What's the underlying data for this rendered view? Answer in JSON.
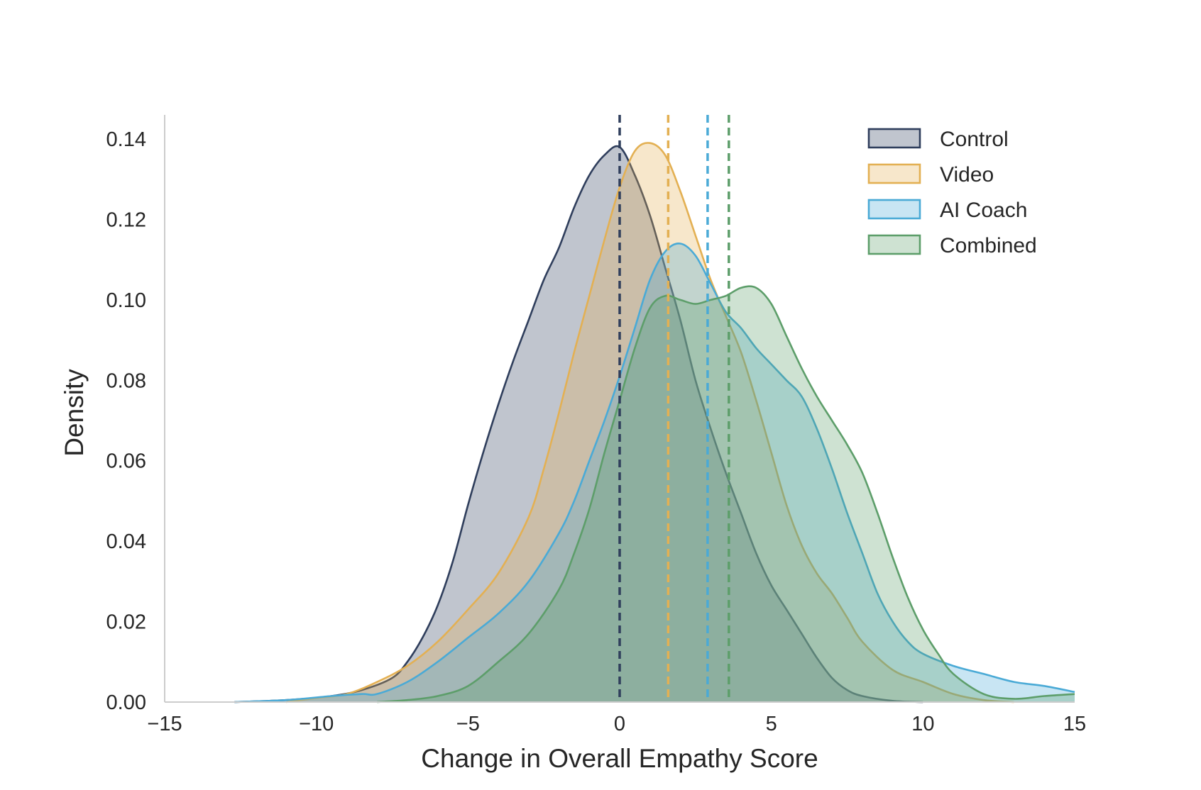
{
  "chart_data": {
    "type": "area",
    "title": "",
    "xlabel": "Change in Overall Empathy Score",
    "ylabel": "Density",
    "xlim": [
      -15,
      15
    ],
    "ylim": [
      0,
      0.146
    ],
    "xticks": [
      -15,
      -10,
      -5,
      0,
      5,
      10,
      15
    ],
    "xtick_labels": [
      "−15",
      "−10",
      "−5",
      "0",
      "5",
      "10",
      "15"
    ],
    "yticks": [
      0,
      0.02,
      0.04,
      0.06,
      0.08,
      0.1,
      0.12,
      0.14
    ],
    "ytick_labels": [
      "0.00",
      "0.02",
      "0.04",
      "0.06",
      "0.08",
      "0.10",
      "0.12",
      "0.14"
    ],
    "grid": false,
    "legend_position": "top-right",
    "series": [
      {
        "name": "Control",
        "color": "#2f3e5c",
        "mean_line": 0,
        "points": [
          [
            -12.7,
            0
          ],
          [
            -11,
            0.0005
          ],
          [
            -9.5,
            0.0015
          ],
          [
            -8.5,
            0.003
          ],
          [
            -7.5,
            0.006
          ],
          [
            -7,
            0.01
          ],
          [
            -6.5,
            0.016
          ],
          [
            -6,
            0.024
          ],
          [
            -5.5,
            0.035
          ],
          [
            -5,
            0.049
          ],
          [
            -4.5,
            0.062
          ],
          [
            -4,
            0.074
          ],
          [
            -3.5,
            0.085
          ],
          [
            -3,
            0.095
          ],
          [
            -2.5,
            0.105
          ],
          [
            -2,
            0.113
          ],
          [
            -1.5,
            0.123
          ],
          [
            -1,
            0.131
          ],
          [
            -0.5,
            0.136
          ],
          [
            0,
            0.138
          ],
          [
            0.5,
            0.131
          ],
          [
            1,
            0.121
          ],
          [
            1.5,
            0.108
          ],
          [
            2,
            0.095
          ],
          [
            2.5,
            0.08
          ],
          [
            3,
            0.068
          ],
          [
            3.5,
            0.057
          ],
          [
            4,
            0.047
          ],
          [
            4.5,
            0.037
          ],
          [
            5,
            0.029
          ],
          [
            5.5,
            0.023
          ],
          [
            6,
            0.017
          ],
          [
            6.5,
            0.011
          ],
          [
            7,
            0.006
          ],
          [
            7.5,
            0.003
          ],
          [
            8,
            0.0015
          ],
          [
            9,
            0.0003
          ],
          [
            10,
            0
          ]
        ]
      },
      {
        "name": "Video",
        "color": "#e3b053",
        "mean_line": 1.6,
        "points": [
          [
            -11,
            0
          ],
          [
            -10,
            0.001
          ],
          [
            -9,
            0.002
          ],
          [
            -8,
            0.005
          ],
          [
            -7,
            0.009
          ],
          [
            -6,
            0.015
          ],
          [
            -5,
            0.023
          ],
          [
            -4,
            0.032
          ],
          [
            -3,
            0.046
          ],
          [
            -2.5,
            0.058
          ],
          [
            -2,
            0.072
          ],
          [
            -1.5,
            0.087
          ],
          [
            -1,
            0.101
          ],
          [
            -0.5,
            0.115
          ],
          [
            0,
            0.128
          ],
          [
            0.5,
            0.137
          ],
          [
            1,
            0.139
          ],
          [
            1.5,
            0.136
          ],
          [
            2,
            0.127
          ],
          [
            2.5,
            0.116
          ],
          [
            3,
            0.105
          ],
          [
            3.5,
            0.096
          ],
          [
            4,
            0.087
          ],
          [
            4.5,
            0.075
          ],
          [
            5,
            0.062
          ],
          [
            5.5,
            0.049
          ],
          [
            6,
            0.039
          ],
          [
            6.5,
            0.032
          ],
          [
            7,
            0.027
          ],
          [
            7.5,
            0.021
          ],
          [
            8,
            0.015
          ],
          [
            9,
            0.008
          ],
          [
            10,
            0.005
          ],
          [
            11,
            0.002
          ],
          [
            12,
            0.0005
          ],
          [
            13,
            0
          ]
        ]
      },
      {
        "name": "AI Coach",
        "color": "#4aaad6",
        "mean_line": 2.9,
        "points": [
          [
            -12.7,
            0
          ],
          [
            -11,
            0.0005
          ],
          [
            -9.5,
            0.0015
          ],
          [
            -8.5,
            0.002
          ],
          [
            -8,
            0.002
          ],
          [
            -7,
            0.005
          ],
          [
            -6,
            0.01
          ],
          [
            -5,
            0.016
          ],
          [
            -4,
            0.022
          ],
          [
            -3,
            0.03
          ],
          [
            -2,
            0.042
          ],
          [
            -1.5,
            0.05
          ],
          [
            -1,
            0.06
          ],
          [
            -0.5,
            0.07
          ],
          [
            0,
            0.081
          ],
          [
            0.5,
            0.093
          ],
          [
            1,
            0.105
          ],
          [
            1.5,
            0.112
          ],
          [
            2,
            0.114
          ],
          [
            2.5,
            0.111
          ],
          [
            3,
            0.104
          ],
          [
            3.5,
            0.097
          ],
          [
            4,
            0.093
          ],
          [
            4.5,
            0.088
          ],
          [
            5,
            0.084
          ],
          [
            5.5,
            0.08
          ],
          [
            6,
            0.076
          ],
          [
            6.5,
            0.068
          ],
          [
            7,
            0.058
          ],
          [
            7.5,
            0.047
          ],
          [
            8,
            0.037
          ],
          [
            8.5,
            0.027
          ],
          [
            9,
            0.02
          ],
          [
            9.5,
            0.015
          ],
          [
            10,
            0.012
          ],
          [
            11,
            0.009
          ],
          [
            12,
            0.007
          ],
          [
            13,
            0.005
          ],
          [
            14,
            0.004
          ],
          [
            15,
            0.0025
          ]
        ]
      },
      {
        "name": "Combined",
        "color": "#5d9e6a",
        "mean_line": 3.6,
        "points": [
          [
            -8,
            0
          ],
          [
            -7,
            0.0005
          ],
          [
            -6,
            0.0015
          ],
          [
            -5,
            0.004
          ],
          [
            -4,
            0.01
          ],
          [
            -3,
            0.017
          ],
          [
            -2,
            0.028
          ],
          [
            -1.5,
            0.037
          ],
          [
            -1,
            0.048
          ],
          [
            -0.5,
            0.062
          ],
          [
            0,
            0.075
          ],
          [
            0.5,
            0.088
          ],
          [
            1,
            0.098
          ],
          [
            1.5,
            0.101
          ],
          [
            2,
            0.1
          ],
          [
            2.5,
            0.099
          ],
          [
            3,
            0.1
          ],
          [
            3.5,
            0.101
          ],
          [
            4,
            0.103
          ],
          [
            4.5,
            0.103
          ],
          [
            5,
            0.099
          ],
          [
            5.5,
            0.091
          ],
          [
            6,
            0.083
          ],
          [
            6.5,
            0.076
          ],
          [
            7,
            0.07
          ],
          [
            7.5,
            0.064
          ],
          [
            8,
            0.057
          ],
          [
            8.5,
            0.047
          ],
          [
            9,
            0.036
          ],
          [
            9.5,
            0.026
          ],
          [
            10,
            0.018
          ],
          [
            10.5,
            0.012
          ],
          [
            11,
            0.007
          ],
          [
            12,
            0.002
          ],
          [
            13,
            0.0008
          ],
          [
            14,
            0.0015
          ],
          [
            15,
            0.002
          ]
        ]
      }
    ]
  }
}
